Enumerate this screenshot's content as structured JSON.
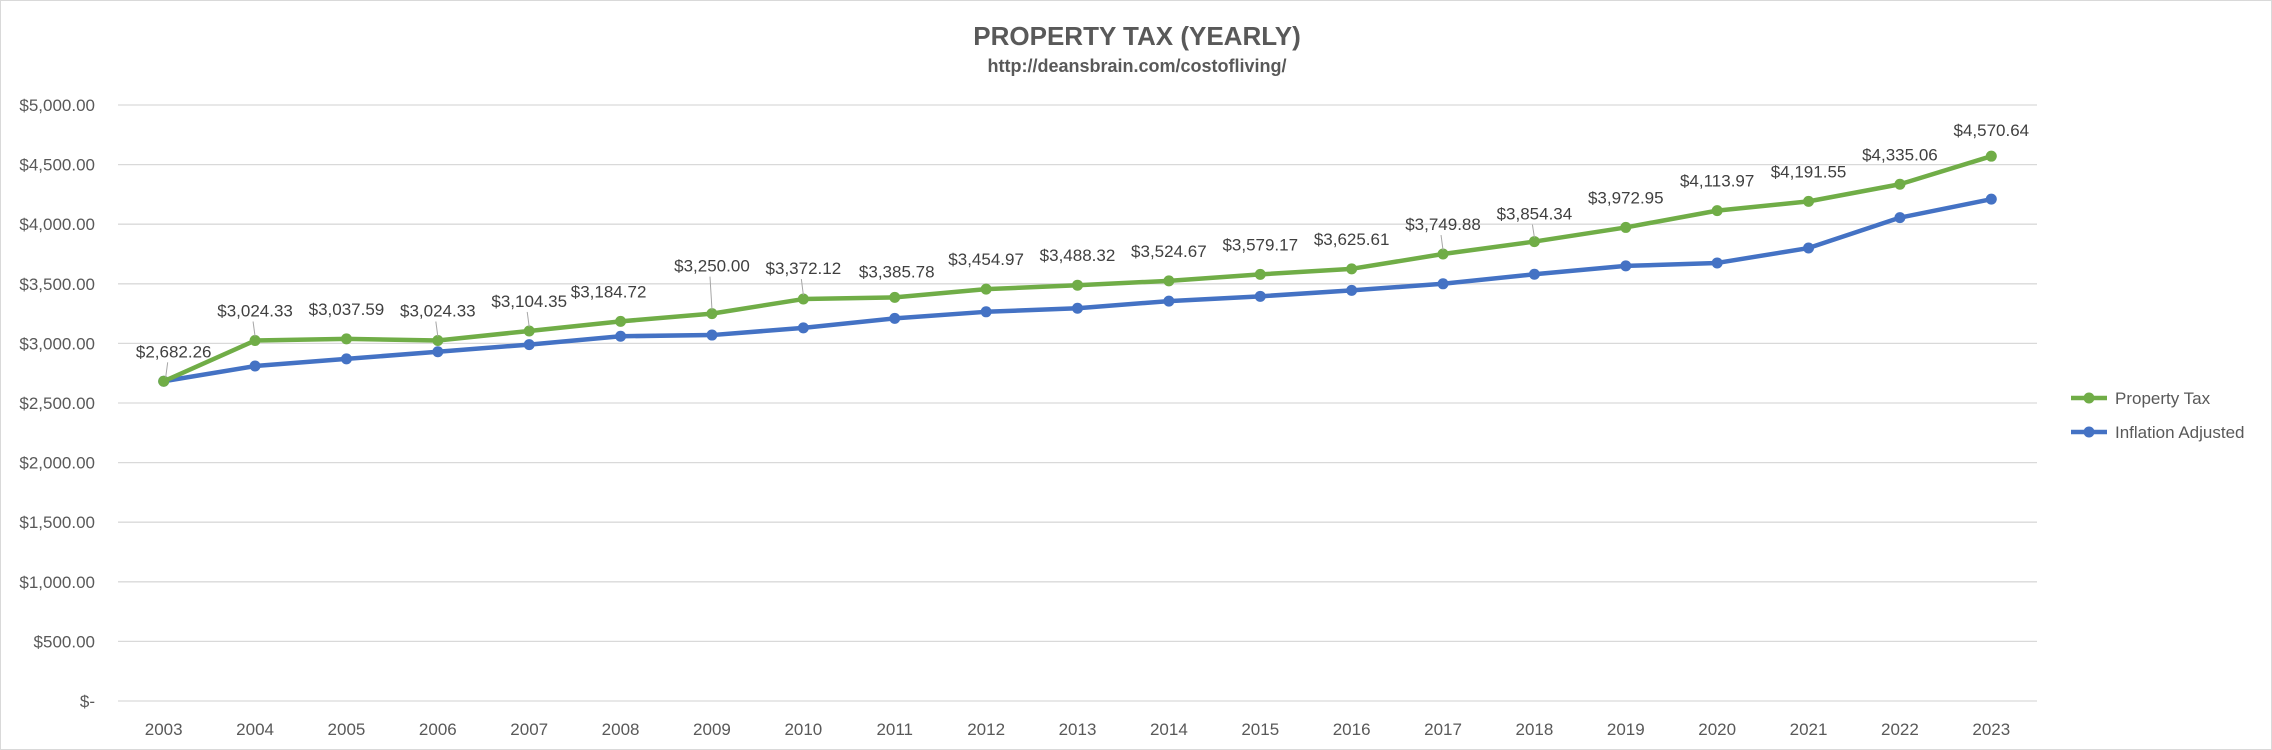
{
  "chart_data": {
    "type": "line",
    "title": "PROPERTY TAX (YEARLY)",
    "subtitle": "http://deansbrain.com/costofliving/",
    "xlabel": "",
    "ylabel": "",
    "categories": [
      "2003",
      "2004",
      "2005",
      "2006",
      "2007",
      "2008",
      "2009",
      "2010",
      "2011",
      "2012",
      "2013",
      "2014",
      "2015",
      "2016",
      "2017",
      "2018",
      "2019",
      "2020",
      "2021",
      "2022",
      "2023"
    ],
    "ylim": [
      0,
      5000
    ],
    "yticks": [
      0,
      500,
      1000,
      1500,
      2000,
      2500,
      3000,
      3500,
      4000,
      4500,
      5000
    ],
    "ytick_labels": [
      "$-",
      "$500.00",
      "$1,000.00",
      "$1,500.00",
      "$2,000.00",
      "$2,500.00",
      "$3,000.00",
      "$3,500.00",
      "$4,000.00",
      "$4,500.00",
      "$5,000.00"
    ],
    "grid": true,
    "legend_position": "right",
    "series": [
      {
        "name": "Property Tax",
        "color": "#70ad47",
        "values": [
          2682.26,
          3024.33,
          3037.59,
          3024.33,
          3104.35,
          3184.72,
          3250.0,
          3372.12,
          3385.78,
          3454.97,
          3488.32,
          3524.67,
          3579.17,
          3625.61,
          3749.88,
          3854.34,
          3972.95,
          4113.97,
          4191.55,
          4335.06,
          4570.64
        ],
        "data_labels": [
          "$2,682.26",
          "$3,024.33",
          "$3,037.59",
          "$3,024.33",
          "$3,104.35",
          "$3,184.72",
          "$3,250.00",
          "$3,372.12",
          "$3,385.78",
          "$3,454.97",
          "$3,488.32",
          "$3,524.67",
          "$3,579.17",
          "$3,625.61",
          "$3,749.88",
          "$3,854.34",
          "$3,972.95",
          "$4,113.97",
          "$4,191.55",
          "$4,335.06",
          "$4,570.64"
        ]
      },
      {
        "name": "Inflation Adjusted",
        "color": "#4472c4",
        "values": [
          2682.26,
          2810,
          2870,
          2930,
          2990,
          3060,
          3070,
          3130,
          3210,
          3265,
          3295,
          3355,
          3395,
          3445,
          3500,
          3580,
          3650,
          3675,
          3800,
          4055,
          4210
        ]
      }
    ]
  }
}
